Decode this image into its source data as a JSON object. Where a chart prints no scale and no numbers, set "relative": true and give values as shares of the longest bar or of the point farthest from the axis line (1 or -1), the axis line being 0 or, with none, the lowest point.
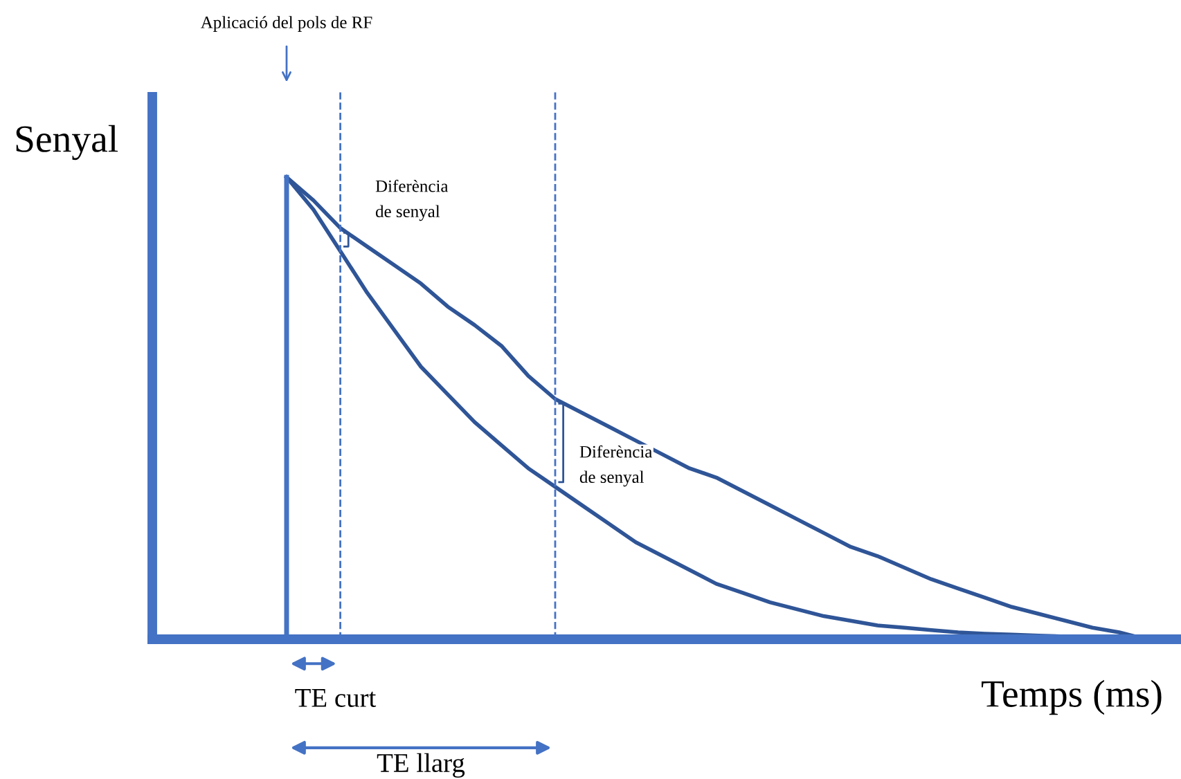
{
  "chart_data": {
    "type": "line",
    "relative": true,
    "xlabel": "Temps (ms)",
    "ylabel": "Senyal",
    "categories": [
      null,
      null,
      null,
      null,
      null,
      null,
      null,
      null,
      null,
      null,
      null,
      null,
      null,
      null,
      null,
      null,
      null,
      null,
      null,
      null,
      null,
      null,
      null,
      null,
      null,
      null,
      null,
      null,
      null,
      null,
      null,
      null,
      null,
      null,
      null,
      null,
      null,
      null,
      null
    ],
    "series": [
      {
        "color": "#2f5597",
        "values": [
          null,
          null,
          null,
          null,
          null,
          1.0,
          0.95,
          0.89,
          0.85,
          0.81,
          0.77,
          0.72,
          0.68,
          0.635,
          0.57,
          0.52,
          0.49,
          0.46,
          0.43,
          0.4,
          0.37,
          0.35,
          0.32,
          0.29,
          0.26,
          0.23,
          0.2,
          0.18,
          0.155,
          0.13,
          0.11,
          0.09,
          0.07,
          0.055,
          0.04,
          0.025,
          0.015,
          0.0,
          null
        ]
      },
      {
        "color": "#2f5597",
        "values": [
          null,
          null,
          null,
          null,
          null,
          1.0,
          0.93,
          0.84,
          0.75,
          0.67,
          0.59,
          0.53,
          0.47,
          0.42,
          0.37,
          0.33,
          0.29,
          0.25,
          0.21,
          0.18,
          0.15,
          0.12,
          0.1,
          0.08,
          0.065,
          0.05,
          0.04,
          0.03,
          0.025,
          0.02,
          0.015,
          0.012,
          0.01,
          0.008,
          0.006,
          0.004,
          0.002,
          null,
          null
        ]
      }
    ],
    "annotations": [
      "Aplicació del pols de RF",
      "Diferència\nde senyal",
      "Diferència\nde senyal",
      "TE curt",
      "TE llarg"
    ],
    "grid": false,
    "legend": false,
    "marker": "none",
    "line_style": "solid"
  }
}
